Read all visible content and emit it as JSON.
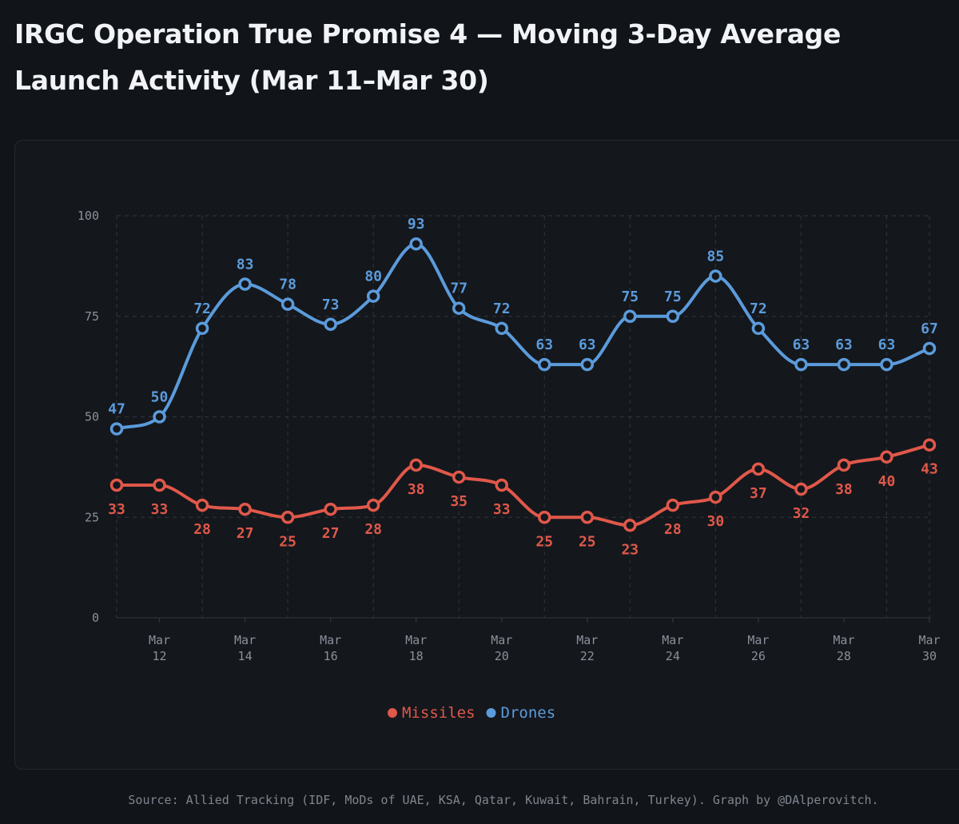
{
  "title": "IRGC Operation True Promise 4 — Moving 3-Day Average Launch Activity (Mar 11–Mar 30)",
  "source": "Source: Allied Tracking (IDF, MoDs of UAE, KSA, Qatar, Kuwait, Bahrain, Turkey). Graph by @DAlperovitch.",
  "chart_data": {
    "type": "line",
    "title": "IRGC Operation True Promise 4 — Moving 3-Day Average Launch Activity (Mar 11–Mar 30)",
    "xlabel": "",
    "ylabel": "",
    "x": [
      "Mar 11",
      "Mar 12",
      "Mar 13",
      "Mar 14",
      "Mar 15",
      "Mar 16",
      "Mar 17",
      "Mar 18",
      "Mar 19",
      "Mar 20",
      "Mar 21",
      "Mar 22",
      "Mar 23",
      "Mar 24",
      "Mar 25",
      "Mar 26",
      "Mar 27",
      "Mar 28",
      "Mar 29",
      "Mar 30"
    ],
    "x_tick_labels": [
      {
        "index": 1,
        "line1": "Mar",
        "line2": "12"
      },
      {
        "index": 3,
        "line1": "Mar",
        "line2": "14"
      },
      {
        "index": 5,
        "line1": "Mar",
        "line2": "16"
      },
      {
        "index": 7,
        "line1": "Mar",
        "line2": "18"
      },
      {
        "index": 9,
        "line1": "Mar",
        "line2": "20"
      },
      {
        "index": 11,
        "line1": "Mar",
        "line2": "22"
      },
      {
        "index": 13,
        "line1": "Mar",
        "line2": "24"
      },
      {
        "index": 15,
        "line1": "Mar",
        "line2": "26"
      },
      {
        "index": 17,
        "line1": "Mar",
        "line2": "28"
      },
      {
        "index": 19,
        "line1": "Mar",
        "line2": "30"
      }
    ],
    "y_ticks": [
      0,
      25,
      50,
      75,
      100
    ],
    "ylim": [
      0,
      100
    ],
    "grid": true,
    "legend_position": "bottom-center",
    "series": [
      {
        "name": "Missiles",
        "color": "#e0584a",
        "label_position": "below",
        "values": [
          33,
          33,
          28,
          27,
          25,
          27,
          28,
          38,
          35,
          33,
          25,
          25,
          23,
          28,
          30,
          37,
          32,
          38,
          40,
          43
        ]
      },
      {
        "name": "Drones",
        "color": "#5b9bdb",
        "label_position": "above",
        "values": [
          47,
          50,
          72,
          83,
          78,
          73,
          80,
          93,
          77,
          72,
          63,
          63,
          75,
          75,
          85,
          72,
          63,
          63,
          63,
          67
        ]
      }
    ]
  },
  "colors": {
    "background": "#111418",
    "card": "#14171c",
    "grid": "#2c3139",
    "axis_text": "#8a919b",
    "marker_fill": "#14171c"
  }
}
